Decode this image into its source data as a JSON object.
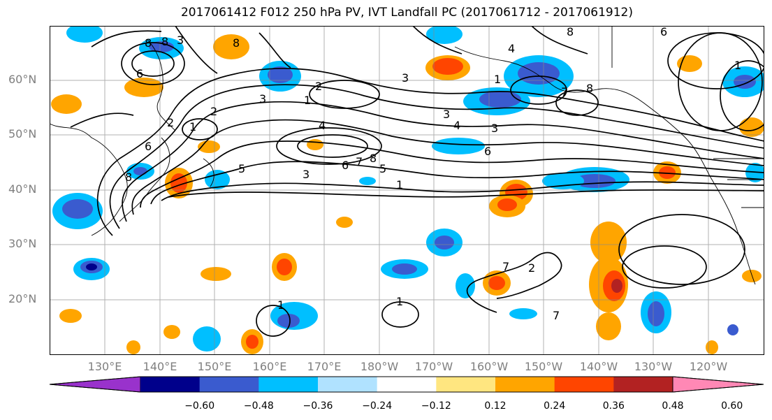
{
  "title": "2017061412 F012 250 hPa PV, IVT Landfall PC (2017061712 - 2017061912)",
  "lat_labels": [
    "60°N",
    "50°N",
    "40°N",
    "30°N",
    "20°N"
  ],
  "lon_labels": [
    "130°E",
    "140°E",
    "150°E",
    "160°E",
    "170°E",
    "180°W",
    "170°W",
    "160°W",
    "150°W",
    "140°W",
    "130°W",
    "120°W"
  ],
  "colorbar": {
    "ticks": [
      "−0.60",
      "−0.48",
      "−0.36",
      "−0.24",
      "−0.12",
      "0.12",
      "0.24",
      "0.36",
      "0.48",
      "0.60"
    ],
    "colors": [
      "#9932cc",
      "#00008b",
      "#3a5bcf",
      "#00bfff",
      "#b0e2ff",
      "#ffffff",
      "#ffe680",
      "#ffa500",
      "#ff4500",
      "#b22222",
      "#ff88b5"
    ]
  },
  "contour_labels": [
    "8",
    "8",
    "3",
    "6",
    "1",
    "2",
    "1",
    "3",
    "4",
    "5",
    "6",
    "7",
    "8",
    "3",
    "1",
    "3",
    "4",
    "3",
    "6",
    "7",
    "8",
    "1",
    "1",
    "2",
    "7",
    "8",
    "6",
    "4",
    "8",
    "5",
    "3",
    "6",
    "8",
    "2",
    "1",
    "1",
    "7",
    "2"
  ]
}
